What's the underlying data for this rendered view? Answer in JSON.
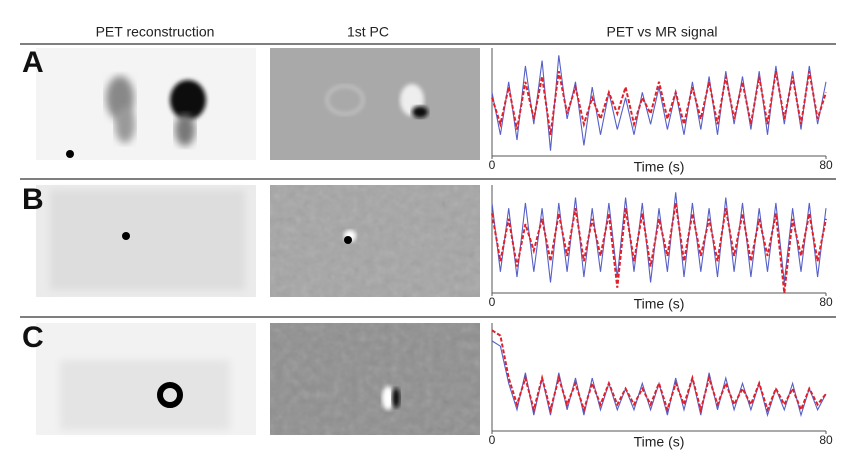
{
  "header": {
    "columns": [
      "PET reconstruction",
      "1st PC",
      "PET vs MR signal"
    ]
  },
  "panels": [
    {
      "label": "A",
      "plot": {
        "type": "line",
        "xlabel": "Time (s)",
        "xlim": [
          0,
          80
        ],
        "xticks": [
          0,
          80
        ],
        "ylim": [
          0,
          1
        ],
        "x": [
          0,
          2,
          4,
          6,
          8,
          10,
          12,
          14,
          16,
          18,
          20,
          22,
          24,
          26,
          28,
          30,
          32,
          34,
          36,
          38,
          40,
          42,
          44,
          46,
          48,
          50,
          52,
          54,
          56,
          58,
          60,
          62,
          64,
          66,
          68,
          70,
          72,
          74,
          76,
          78,
          80
        ],
        "series": [
          {
            "color": "#5560c8",
            "style": "solid",
            "values": [
              0.6,
              0.2,
              0.7,
              0.15,
              0.85,
              0.3,
              0.9,
              0.05,
              0.95,
              0.35,
              0.7,
              0.1,
              0.65,
              0.2,
              0.6,
              0.25,
              0.55,
              0.2,
              0.6,
              0.3,
              0.65,
              0.25,
              0.6,
              0.2,
              0.7,
              0.25,
              0.75,
              0.2,
              0.8,
              0.3,
              0.75,
              0.25,
              0.8,
              0.2,
              0.85,
              0.3,
              0.8,
              0.25,
              0.85,
              0.3,
              0.7
            ]
          },
          {
            "color": "#e0202a",
            "style": "dashed",
            "values": [
              0.55,
              0.3,
              0.65,
              0.25,
              0.7,
              0.35,
              0.75,
              0.2,
              0.8,
              0.4,
              0.65,
              0.3,
              0.55,
              0.35,
              0.6,
              0.4,
              0.65,
              0.3,
              0.55,
              0.4,
              0.7,
              0.35,
              0.6,
              0.3,
              0.65,
              0.35,
              0.7,
              0.3,
              0.75,
              0.35,
              0.7,
              0.3,
              0.75,
              0.3,
              0.8,
              0.35,
              0.75,
              0.3,
              0.8,
              0.35,
              0.6
            ]
          }
        ]
      }
    },
    {
      "label": "B",
      "plot": {
        "type": "line",
        "xlabel": "Time (s)",
        "xlim": [
          0,
          80
        ],
        "xticks": [
          0,
          80
        ],
        "ylim": [
          0,
          1
        ],
        "x": [
          0,
          2,
          4,
          6,
          8,
          10,
          12,
          14,
          16,
          18,
          20,
          22,
          24,
          26,
          28,
          30,
          32,
          34,
          36,
          38,
          40,
          42,
          44,
          46,
          48,
          50,
          52,
          54,
          56,
          58,
          60,
          62,
          64,
          66,
          68,
          70,
          72,
          74,
          76,
          78,
          80
        ],
        "series": [
          {
            "color": "#5560c8",
            "style": "solid",
            "values": [
              0.85,
              0.2,
              0.8,
              0.15,
              0.85,
              0.2,
              0.8,
              0.1,
              0.85,
              0.2,
              0.9,
              0.15,
              0.8,
              0.2,
              0.85,
              0.15,
              0.9,
              0.2,
              0.85,
              0.1,
              0.8,
              0.2,
              0.95,
              0.15,
              0.85,
              0.2,
              0.8,
              0.15,
              0.9,
              0.2,
              0.85,
              0.15,
              0.8,
              0.2,
              0.85,
              0.1,
              0.8,
              0.2,
              0.85,
              0.15,
              0.8
            ]
          },
          {
            "color": "#e0202a",
            "style": "dashed",
            "values": [
              0.75,
              0.3,
              0.7,
              0.25,
              0.65,
              0.4,
              0.7,
              0.3,
              0.75,
              0.35,
              0.8,
              0.3,
              0.7,
              0.35,
              0.75,
              0.05,
              0.8,
              0.3,
              0.75,
              0.25,
              0.7,
              0.35,
              0.85,
              0.3,
              0.75,
              0.35,
              0.7,
              0.3,
              0.8,
              0.35,
              0.75,
              0.3,
              0.7,
              0.35,
              0.75,
              0.0,
              0.7,
              0.35,
              0.75,
              0.3,
              0.7
            ]
          }
        ]
      }
    },
    {
      "label": "C",
      "plot": {
        "type": "line",
        "xlabel": "Time (s)",
        "xlim": [
          0,
          80
        ],
        "xticks": [
          0,
          80
        ],
        "ylim": [
          0,
          1
        ],
        "x": [
          0,
          2,
          4,
          6,
          8,
          10,
          12,
          14,
          16,
          18,
          20,
          22,
          24,
          26,
          28,
          30,
          32,
          34,
          36,
          38,
          40,
          42,
          44,
          46,
          48,
          50,
          52,
          54,
          56,
          58,
          60,
          62,
          64,
          66,
          68,
          70,
          72,
          74,
          76,
          78,
          80
        ],
        "series": [
          {
            "color": "#5560c8",
            "style": "solid",
            "values": [
              0.85,
              0.8,
              0.45,
              0.2,
              0.55,
              0.15,
              0.5,
              0.15,
              0.55,
              0.2,
              0.5,
              0.15,
              0.5,
              0.2,
              0.45,
              0.2,
              0.4,
              0.2,
              0.45,
              0.2,
              0.45,
              0.15,
              0.5,
              0.2,
              0.5,
              0.15,
              0.55,
              0.2,
              0.5,
              0.2,
              0.45,
              0.2,
              0.45,
              0.15,
              0.4,
              0.2,
              0.45,
              0.15,
              0.4,
              0.2,
              0.35
            ]
          },
          {
            "color": "#e0202a",
            "style": "dashed",
            "values": [
              0.95,
              0.9,
              0.5,
              0.25,
              0.5,
              0.2,
              0.5,
              0.2,
              0.5,
              0.25,
              0.45,
              0.2,
              0.45,
              0.25,
              0.45,
              0.25,
              0.4,
              0.25,
              0.4,
              0.25,
              0.45,
              0.2,
              0.45,
              0.25,
              0.5,
              0.2,
              0.5,
              0.25,
              0.45,
              0.25,
              0.4,
              0.25,
              0.45,
              0.2,
              0.4,
              0.25,
              0.4,
              0.2,
              0.4,
              0.25,
              0.35
            ]
          }
        ]
      }
    }
  ]
}
